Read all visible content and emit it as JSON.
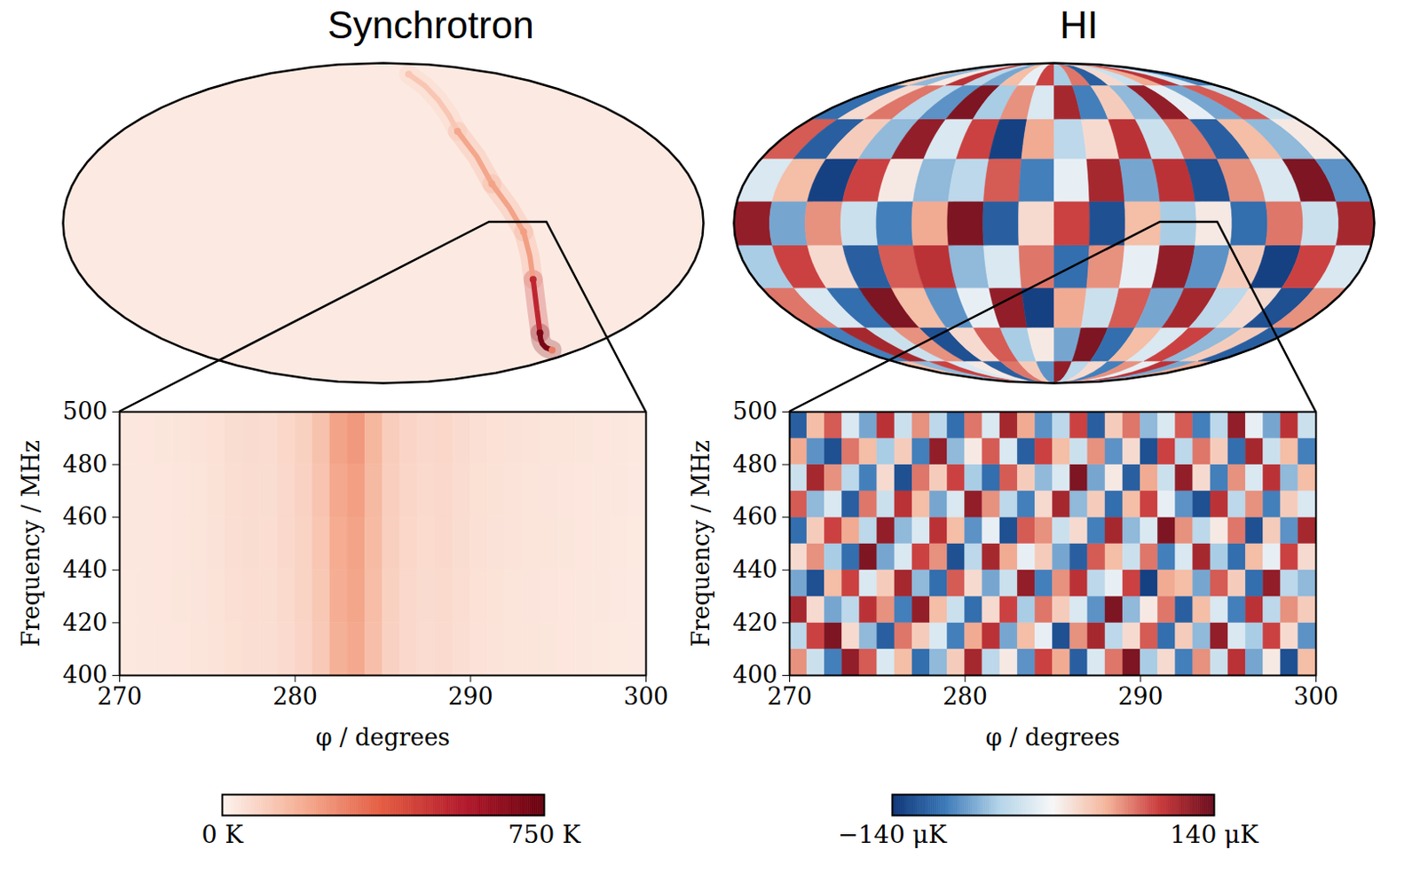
{
  "chart_data": [
    {
      "type": "heatmap",
      "title": "Synchrotron",
      "xlabel": "φ / degrees",
      "ylabel": "Frequency / MHz",
      "xlim": [
        270,
        300
      ],
      "xticks": [
        270,
        280,
        290,
        300
      ],
      "ylim": [
        400,
        500
      ],
      "yticks": [
        400,
        420,
        440,
        460,
        480,
        500
      ],
      "x_edges": [
        270,
        271,
        272,
        273,
        274,
        275,
        276,
        277,
        278,
        279,
        280,
        281,
        282,
        283,
        284,
        285,
        286,
        287,
        288,
        289,
        290,
        291,
        292,
        293,
        294,
        295,
        296,
        297,
        298,
        299,
        300
      ],
      "y_edges": [
        400,
        420,
        440,
        460,
        480,
        500
      ],
      "cells": [
        [
          30,
          31,
          33,
          35,
          38,
          42,
          52,
          56,
          55,
          66,
          80,
          112,
          178,
          196,
          140,
          90,
          70,
          61,
          66,
          56,
          47,
          42,
          40,
          38,
          36,
          34,
          32,
          30,
          28,
          27
        ],
        [
          30,
          32,
          34,
          36,
          39,
          44,
          54,
          58,
          57,
          68,
          83,
          116,
          184,
          203,
          145,
          92,
          72,
          63,
          68,
          58,
          48,
          44,
          41,
          39,
          37,
          35,
          33,
          31,
          29,
          27
        ],
        [
          31,
          32,
          34,
          37,
          40,
          45,
          55,
          60,
          58,
          70,
          85,
          120,
          190,
          210,
          150,
          95,
          75,
          65,
          70,
          60,
          50,
          45,
          42,
          40,
          38,
          36,
          34,
          32,
          30,
          28
        ],
        [
          31,
          33,
          35,
          37,
          41,
          46,
          57,
          62,
          60,
          72,
          88,
          125,
          198,
          220,
          156,
          98,
          78,
          67,
          72,
          62,
          52,
          46,
          43,
          41,
          39,
          37,
          35,
          33,
          31,
          29
        ],
        [
          32,
          34,
          36,
          38,
          42,
          48,
          59,
          64,
          62,
          75,
          92,
          132,
          210,
          232,
          162,
          102,
          80,
          69,
          75,
          64,
          54,
          48,
          45,
          42,
          40,
          38,
          36,
          34,
          32,
          30
        ]
      ],
      "sky_map": {
        "background": 25,
        "ridge": [
          {
            "lon": 39,
            "lat": 78,
            "value": 120
          },
          {
            "lon": 51,
            "lat": 43.5,
            "value": 200
          },
          {
            "lon": 63,
            "lat": 18,
            "value": 210
          },
          {
            "lon": 79,
            "lat": -4,
            "value": 220
          },
          {
            "lon": 90,
            "lat": -26,
            "value": 520
          },
          {
            "lon": 121,
            "lat": -53,
            "value": 700
          },
          {
            "lon": 156,
            "lat": -63,
            "value": 300
          }
        ]
      },
      "colorbar": {
        "range": [
          0,
          750
        ],
        "ticks": [
          {
            "value": 0,
            "label": "0 K"
          },
          {
            "value": 750,
            "label": "750 K"
          }
        ],
        "colors": [
          "#fdf3ee",
          "#f5ad92",
          "#e35a3f",
          "#b3182b",
          "#67000d"
        ]
      }
    },
    {
      "type": "heatmap",
      "title": "HI",
      "xlabel": "φ / degrees",
      "ylabel": "Frequency / MHz",
      "xlim": [
        270,
        300
      ],
      "xticks": [
        270,
        280,
        290,
        300
      ],
      "ylim": [
        400,
        500
      ],
      "yticks": [
        400,
        420,
        440,
        460,
        480,
        500
      ],
      "x_edges": [
        270,
        271,
        272,
        273,
        274,
        275,
        276,
        277,
        278,
        279,
        280,
        281,
        282,
        283,
        284,
        285,
        286,
        287,
        288,
        289,
        290,
        291,
        292,
        293,
        294,
        295,
        296,
        297,
        298,
        299,
        300
      ],
      "y_edges": [
        400,
        410,
        420,
        430,
        440,
        450,
        460,
        470,
        480,
        490,
        500
      ],
      "cells": [
        [
          60,
          -30,
          -90,
          120,
          80,
          -20,
          40,
          -100,
          -60,
          30,
          110,
          -40,
          10,
          -80,
          90,
          50,
          -110,
          -20,
          70,
          130,
          -50,
          20,
          -90,
          60,
          -30,
          100,
          -70,
          10,
          -120,
          40
        ],
        [
          -40,
          90,
          130,
          20,
          -60,
          -110,
          70,
          30,
          -20,
          -90,
          50,
          100,
          -70,
          40,
          -10,
          -120,
          60,
          110,
          -40,
          20,
          80,
          -100,
          30,
          -60,
          120,
          -20,
          -50,
          90,
          20,
          -80
        ],
        [
          110,
          20,
          -70,
          -40,
          100,
          60,
          -90,
          120,
          40,
          -30,
          -100,
          20,
          90,
          -50,
          70,
          30,
          -20,
          -80,
          130,
          -60,
          10,
          70,
          -110,
          40,
          -20,
          -90,
          100,
          -40,
          60,
          30
        ],
        [
          -70,
          -120,
          40,
          90,
          -20,
          30,
          110,
          -60,
          -100,
          80,
          20,
          -70,
          -30,
          120,
          -90,
          60,
          100,
          -40,
          -10,
          90,
          -130,
          50,
          40,
          -70,
          80,
          30,
          -100,
          120,
          -40,
          -60
        ],
        [
          20,
          60,
          -50,
          -100,
          130,
          -70,
          -20,
          90,
          60,
          -120,
          -40,
          110,
          50,
          -10,
          30,
          -70,
          -110,
          80,
          40,
          -30,
          70,
          -90,
          -20,
          110,
          -50,
          -100,
          40,
          -10,
          90,
          20
        ],
        [
          -100,
          30,
          90,
          50,
          -40,
          120,
          -60,
          -20,
          100,
          40,
          -80,
          -10,
          -120,
          80,
          60,
          -30,
          20,
          -90,
          110,
          -60,
          -20,
          130,
          60,
          -40,
          10,
          70,
          -120,
          30,
          -80,
          110
        ],
        [
          80,
          -60,
          -20,
          -110,
          70,
          -30,
          100,
          40,
          -70,
          -20,
          120,
          60,
          -40,
          -90,
          20,
          110,
          -60,
          30,
          -100,
          40,
          90,
          -10,
          -80,
          -120,
          100,
          -40,
          60,
          -90,
          30,
          -20
        ],
        [
          -30,
          110,
          60,
          -40,
          -90,
          20,
          -120,
          70,
          30,
          90,
          -50,
          -100,
          80,
          30,
          -60,
          -20,
          130,
          -70,
          10,
          -110,
          50,
          -30,
          120,
          20,
          -90,
          60,
          -20,
          100,
          -60,
          40
        ],
        [
          50,
          -80,
          -120,
          70,
          40,
          -50,
          30,
          -90,
          120,
          -60,
          10,
          80,
          -20,
          -110,
          90,
          40,
          -30,
          60,
          -80,
          20,
          -120,
          90,
          -40,
          70,
          30,
          -100,
          110,
          -30,
          40,
          -90
        ],
        [
          -110,
          40,
          80,
          -20,
          -70,
          100,
          -30,
          60,
          -40,
          -100,
          70,
          -20,
          110,
          50,
          -80,
          -40,
          90,
          -110,
          30,
          70,
          -60,
          -20,
          80,
          -90,
          -40,
          120,
          -10,
          -70,
          100,
          -30
        ]
      ],
      "sky_map": {
        "lon_edges": [
          -180,
          -160,
          -140,
          -120,
          -100,
          -80,
          -60,
          -40,
          -20,
          0,
          20,
          40,
          60,
          80,
          100,
          120,
          140,
          160,
          180
        ],
        "lat_edges": [
          -90,
          -70,
          -50,
          -30,
          -10,
          10,
          30,
          50,
          70,
          90
        ],
        "cells": [
          [
            40,
            -60,
            90,
            -20,
            10,
            -110,
            70,
            30,
            -80,
            120,
            -40,
            20,
            -90,
            60,
            -10,
            100,
            -70,
            50
          ],
          [
            -90,
            110,
            -30,
            60,
            -120,
            20,
            80,
            -50,
            10,
            -70,
            130,
            -100,
            40,
            -20,
            90,
            -60,
            30,
            -110
          ],
          [
            70,
            -20,
            -100,
            130,
            40,
            -80,
            -10,
            120,
            -130,
            50,
            -30,
            80,
            -70,
            110,
            -40,
            20,
            -120,
            60
          ],
          [
            -50,
            90,
            20,
            -110,
            80,
            100,
            -60,
            -20,
            70,
            -100,
            60,
            -10,
            120,
            -80,
            30,
            -130,
            90,
            -20
          ],
          [
            120,
            -70,
            60,
            -30,
            -90,
            50,
            130,
            -110,
            20,
            90,
            -120,
            40,
            -50,
            10,
            -100,
            70,
            -30,
            110
          ],
          [
            -20,
            40,
            -130,
            90,
            10,
            -60,
            -40,
            80,
            -90,
            -10,
            110,
            -70,
            100,
            -120,
            60,
            -20,
            130,
            -80
          ],
          [
            80,
            -110,
            30,
            -60,
            120,
            -20,
            90,
            -130,
            50,
            -40,
            20,
            100,
            -30,
            70,
            -110,
            40,
            -60,
            10
          ],
          [
            -100,
            20,
            70,
            -40,
            -80,
            130,
            -50,
            60,
            -20,
            110,
            -90,
            30,
            -60,
            120,
            -10,
            -70,
            80,
            -30
          ],
          [
            30,
            -60,
            10,
            100,
            -40,
            -70,
            40,
            -10,
            90,
            -50,
            70,
            -110,
            20,
            -30,
            50,
            100,
            -20,
            -90
          ]
        ]
      },
      "colorbar": {
        "range": [
          -140,
          140
        ],
        "ticks": [
          {
            "value": -140,
            "label": "−140 μK"
          },
          {
            "value": 140,
            "label": "140 μK"
          }
        ],
        "colors": [
          "#0b3275",
          "#3a78b8",
          "#b2d3e8",
          "#f7f7f7",
          "#f4b49a",
          "#c8383a",
          "#6a0b1c"
        ]
      }
    }
  ]
}
